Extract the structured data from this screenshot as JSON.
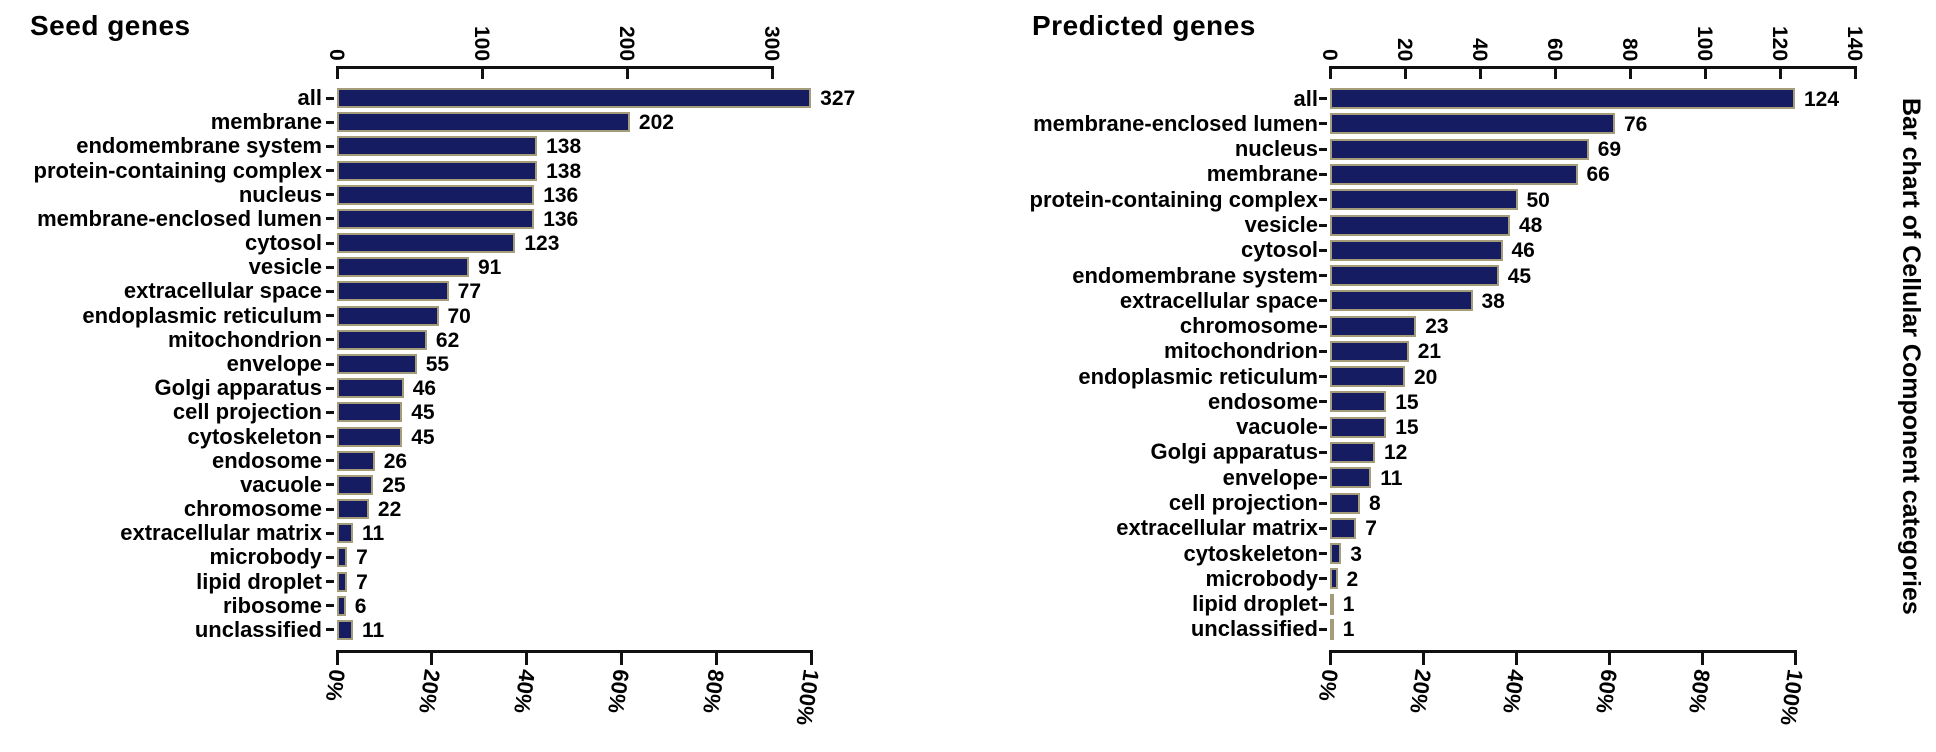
{
  "figure": {
    "side_label": "Bar chart of Cellular Component categories"
  },
  "chart_data": [
    {
      "type": "bar",
      "orientation": "horizontal",
      "title": "Seed genes",
      "categories": [
        "all",
        "membrane",
        "endomembrane system",
        "protein-containing complex",
        "nucleus",
        "membrane-enclosed lumen",
        "cytosol",
        "vesicle",
        "extracellular space",
        "endoplasmic reticulum",
        "mitochondrion",
        "envelope",
        "Golgi apparatus",
        "cell projection",
        "cytoskeleton",
        "endosome",
        "vacuole",
        "chromosome",
        "extracellular matrix",
        "microbody",
        "lipid droplet",
        "ribosome",
        "unclassified"
      ],
      "values": [
        327,
        202,
        138,
        138,
        136,
        136,
        123,
        91,
        77,
        70,
        62,
        55,
        46,
        45,
        45,
        26,
        25,
        22,
        11,
        7,
        7,
        6,
        11
      ],
      "count_axis": {
        "position": "top",
        "ticks": [
          0,
          100,
          200,
          300
        ],
        "max_tick": 300
      },
      "percent_axis": {
        "position": "bottom",
        "tick_labels": [
          "0%",
          "20%",
          "40%",
          "60%",
          "80%",
          "100%"
        ],
        "full_scale_value": 327
      },
      "bar_fill": "#151c62",
      "bar_border": "#a59c7a"
    },
    {
      "type": "bar",
      "orientation": "horizontal",
      "title": "Predicted genes",
      "categories": [
        "all",
        "membrane-enclosed lumen",
        "nucleus",
        "membrane",
        "protein-containing complex",
        "vesicle",
        "cytosol",
        "endomembrane system",
        "extracellular space",
        "chromosome",
        "mitochondrion",
        "endoplasmic reticulum",
        "endosome",
        "vacuole",
        "Golgi apparatus",
        "envelope",
        "cell projection",
        "extracellular matrix",
        "cytoskeleton",
        "microbody",
        "lipid droplet",
        "unclassified"
      ],
      "values": [
        124,
        76,
        69,
        66,
        50,
        48,
        46,
        45,
        38,
        23,
        21,
        20,
        15,
        15,
        12,
        11,
        8,
        7,
        3,
        2,
        1,
        1
      ],
      "count_axis": {
        "position": "top",
        "ticks": [
          0,
          20,
          40,
          60,
          80,
          100,
          120,
          140
        ],
        "max_tick": 140
      },
      "percent_axis": {
        "position": "bottom",
        "tick_labels": [
          "0%",
          "20%",
          "40%",
          "60%",
          "80%",
          "100%"
        ],
        "full_scale_value": 124
      },
      "bar_fill": "#151c62",
      "bar_border": "#a59c7a"
    }
  ]
}
